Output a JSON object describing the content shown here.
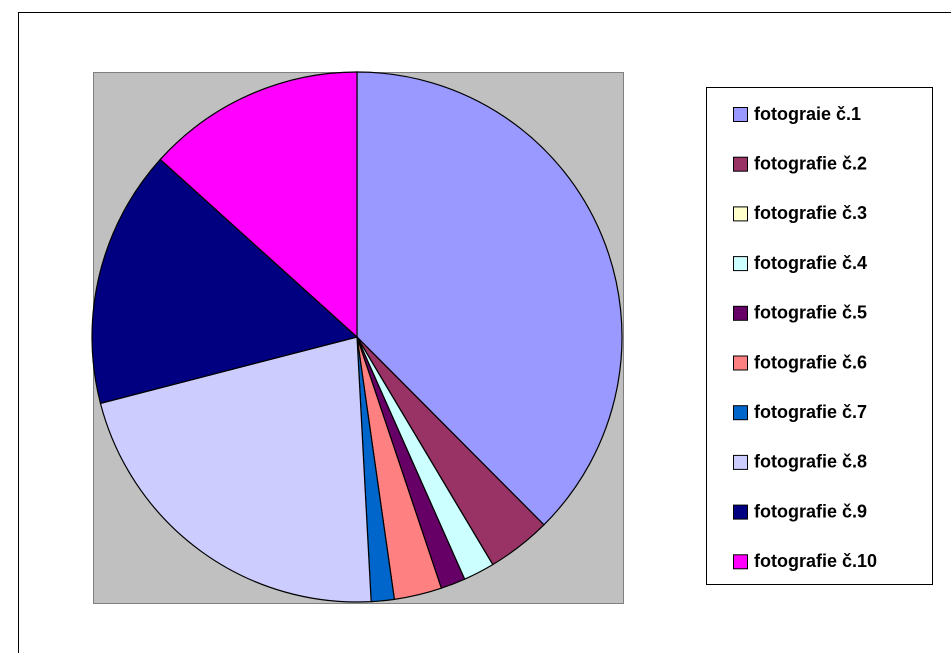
{
  "chart_data": {
    "type": "pie",
    "categories": [
      "fotograie č.1",
      "fotografie č.2",
      "fotografie č.3",
      "fotografie č.4",
      "fotografie č.5",
      "fotografie č.6",
      "fotografie č.7",
      "fotografie č.8",
      "fotografie č.9",
      "fotografie č.10"
    ],
    "values": [
      37.5,
      3.9,
      0,
      1.9,
      1.5,
      2.9,
      1.4,
      21.8,
      15.7,
      13.3
    ],
    "colors": [
      "#9999ff",
      "#993366",
      "#ffffcc",
      "#ccffff",
      "#660066",
      "#ff8080",
      "#0066cc",
      "#ccccff",
      "#000080",
      "#ff00ff"
    ],
    "legend": "right"
  }
}
